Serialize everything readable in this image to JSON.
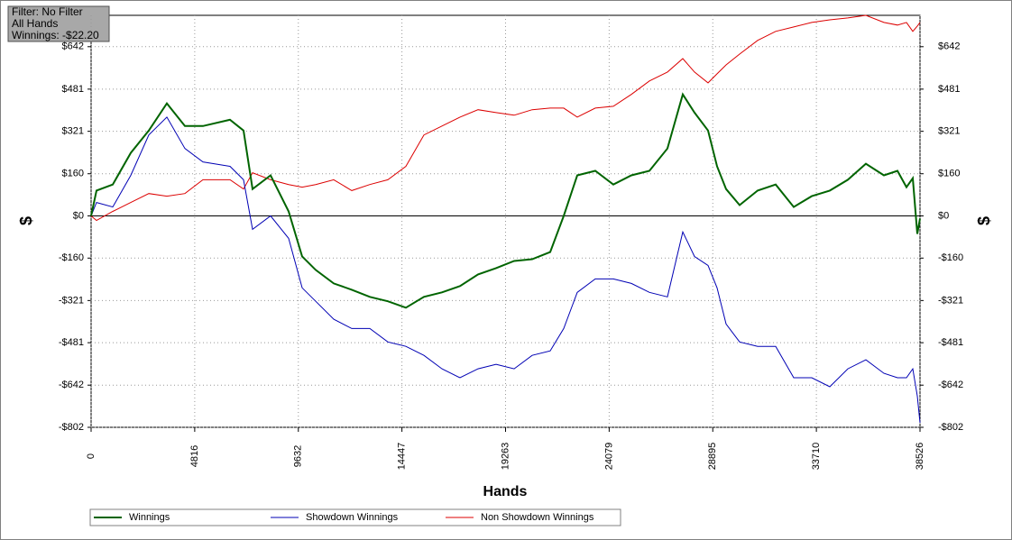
{
  "chart_data": {
    "type": "line",
    "info": [
      "Filter: No Filter",
      "All Hands",
      "Winnings: -$22.20"
    ],
    "xlabel": "Hands",
    "ylabel": "$",
    "xlim": [
      0,
      38526
    ],
    "ylim": [
      -802,
      761
    ],
    "xticks": [
      0,
      4816,
      9632,
      14447,
      19263,
      24079,
      28895,
      33710,
      38526
    ],
    "yticks": [
      {
        "value": -802,
        "label": "-$802"
      },
      {
        "value": -642,
        "label": "-$642"
      },
      {
        "value": -481,
        "label": "-$481"
      },
      {
        "value": -321,
        "label": "-$321"
      },
      {
        "value": -160,
        "label": "-$160"
      },
      {
        "value": 0,
        "label": "$0"
      },
      {
        "value": 160,
        "label": "$160"
      },
      {
        "value": 321,
        "label": "$321"
      },
      {
        "value": 481,
        "label": "$481"
      },
      {
        "value": 642,
        "label": "$642"
      }
    ],
    "grid": true,
    "x": [
      0,
      252,
      1006,
      1844,
      2683,
      3521,
      4360,
      5198,
      6456,
      7084,
      7504,
      8342,
      9180,
      9809,
      10438,
      11276,
      12115,
      12953,
      13792,
      14630,
      15468,
      16307,
      17145,
      17984,
      18822,
      19660,
      20499,
      21337,
      21966,
      22594,
      23433,
      24271,
      25110,
      25948,
      26787,
      27500,
      28045,
      28674,
      29093,
      29512,
      30141,
      30979,
      31818,
      32656,
      33494,
      34333,
      35171,
      36010,
      36848,
      37477,
      37896,
      38190,
      38400,
      38526
    ],
    "series": [
      {
        "name": "Winnings",
        "color": "#006400",
        "values": [
          0,
          96,
          119,
          239,
          324,
          427,
          341,
          341,
          365,
          324,
          102,
          154,
          17,
          -154,
          -205,
          -256,
          -280,
          -307,
          -324,
          -348,
          -307,
          -290,
          -266,
          -222,
          -198,
          -171,
          -164,
          -137,
          0,
          154,
          171,
          119,
          154,
          171,
          256,
          461,
          392,
          324,
          188,
          102,
          41,
          96,
          119,
          34,
          75,
          96,
          137,
          198,
          154,
          171,
          109,
          143,
          -68,
          -10
        ]
      },
      {
        "name": "Showdown Winnings",
        "color": "#0000b4",
        "values": [
          0,
          51,
          34,
          154,
          307,
          375,
          256,
          205,
          188,
          137,
          -51,
          0,
          -85,
          -273,
          -324,
          -392,
          -427,
          -427,
          -478,
          -495,
          -529,
          -580,
          -614,
          -580,
          -563,
          -580,
          -529,
          -512,
          -427,
          -290,
          -239,
          -239,
          -256,
          -290,
          -307,
          -61,
          -154,
          -188,
          -273,
          -410,
          -478,
          -495,
          -495,
          -614,
          -614,
          -648,
          -580,
          -546,
          -597,
          -614,
          -614,
          -580,
          -683,
          -785
        ]
      },
      {
        "name": "Non Showdown Winnings",
        "color": "#dc0000",
        "values": [
          0,
          -17,
          17,
          51,
          85,
          75,
          85,
          137,
          137,
          102,
          164,
          137,
          119,
          109,
          119,
          137,
          96,
          119,
          137,
          188,
          307,
          341,
          375,
          403,
          392,
          382,
          403,
          409,
          409,
          375,
          409,
          416,
          461,
          512,
          546,
          597,
          546,
          505,
          539,
          573,
          614,
          666,
          700,
          717,
          734,
          744,
          751,
          761,
          734,
          724,
          734,
          700,
          720,
          734
        ]
      }
    ]
  }
}
